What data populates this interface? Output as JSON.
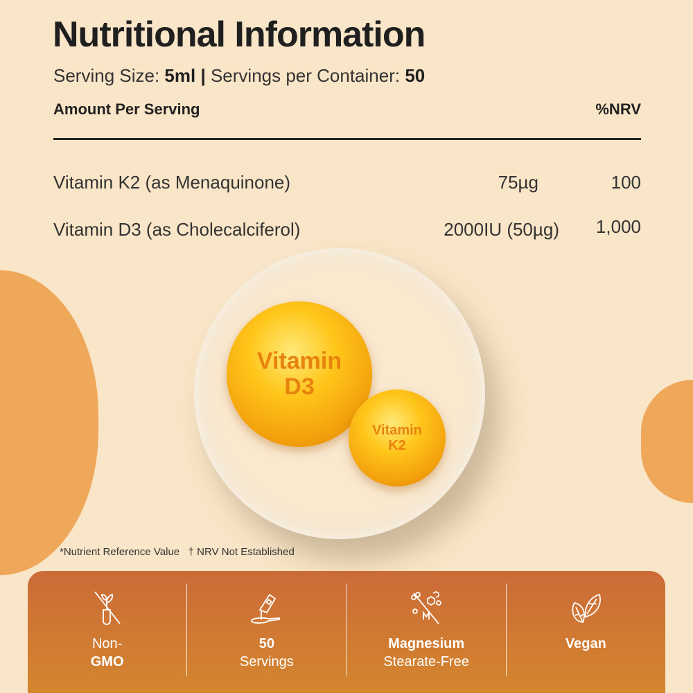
{
  "title": "Nutritional Information",
  "serving": {
    "size_label": "Serving Size: ",
    "size": "5ml",
    "sep": " | ",
    "per_label": "Servings per Container: ",
    "per": "50"
  },
  "table": {
    "amount_header": "Amount Per Serving",
    "nrv_header": "%NRV",
    "rows": [
      {
        "name": "Vitamin K2 (as Menaquinone)",
        "amount": "75µg",
        "nrv": "100"
      },
      {
        "name": "Vitamin D3 (as Cholecalciferol)",
        "amount": "2000IU (50µg)",
        "nrv": "1,000"
      }
    ]
  },
  "graphic": {
    "d3_line1": "Vitamin",
    "d3_line2": "D3",
    "k2_line1": "Vitamin",
    "k2_line2": "K2"
  },
  "footnote": {
    "nrv": "*Nutrient Reference Value",
    "not_established": "† NRV Not Established"
  },
  "features": [
    {
      "icon": "non-gmo-icon",
      "line1": "Non-",
      "line2": "GMO"
    },
    {
      "icon": "bottle-spoon-icon",
      "line1": "50",
      "line2": "Servings"
    },
    {
      "icon": "magnesium-free-icon",
      "line1": "Magnesium",
      "line2": "Stearate-Free"
    },
    {
      "icon": "leaves-icon",
      "line1": "Vegan",
      "line2": ""
    }
  ],
  "colors": {
    "background": "#f9e5c7",
    "accent": "#efa85a",
    "band_top": "#cb6b38",
    "band_bottom": "#d4862e"
  }
}
